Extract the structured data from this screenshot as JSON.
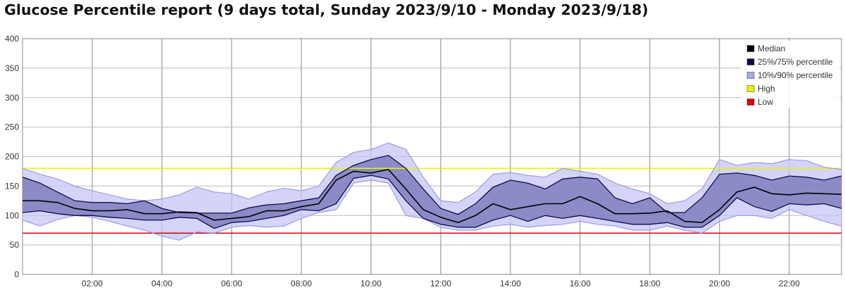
{
  "title": "Glucose Percentile report (9 days total, Sunday 2023/9/10 - Monday 2023/9/18)",
  "chart_data": {
    "type": "area",
    "title": "Glucose Percentile report (9 days total, Sunday 2023/9/10 - Monday 2023/9/18)",
    "xlabel": "",
    "ylabel": "",
    "x_unit": "hours",
    "xlim": [
      0,
      23.5
    ],
    "ylim": [
      0,
      400
    ],
    "y_ticks": [
      0,
      50,
      100,
      150,
      200,
      250,
      300,
      350,
      400
    ],
    "x_ticks": [
      {
        "value": 2,
        "label": "02:00"
      },
      {
        "value": 4,
        "label": "04:00"
      },
      {
        "value": 6,
        "label": "06:00"
      },
      {
        "value": 8,
        "label": "08:00"
      },
      {
        "value": 10,
        "label": "10:00"
      },
      {
        "value": 12,
        "label": "12:00"
      },
      {
        "value": 14,
        "label": "14:00"
      },
      {
        "value": 16,
        "label": "16:00"
      },
      {
        "value": 18,
        "label": "18:00"
      },
      {
        "value": 20,
        "label": "20:00"
      },
      {
        "value": 22,
        "label": "22:00"
      }
    ],
    "grid": true,
    "legend_position": "top-right",
    "x": [
      0,
      0.5,
      1,
      1.5,
      2,
      2.5,
      3,
      3.5,
      4,
      4.5,
      5,
      5.5,
      6,
      6.5,
      7,
      7.5,
      8,
      8.5,
      9,
      9.5,
      10,
      10.5,
      11,
      11.5,
      12,
      12.5,
      13,
      13.5,
      14,
      14.5,
      15,
      15.5,
      16,
      16.5,
      17,
      17.5,
      18,
      18.5,
      19,
      19.5,
      20,
      20.5,
      21,
      21.5,
      22,
      22.5,
      23,
      23.5
    ],
    "series": [
      {
        "name": "10%/90% percentile",
        "role": "p10",
        "color": "#a8a8f0",
        "values": [
          92,
          82,
          93,
          100,
          97,
          90,
          82,
          75,
          65,
          58,
          72,
          70,
          80,
          83,
          80,
          82,
          95,
          105,
          110,
          155,
          160,
          155,
          100,
          95,
          80,
          75,
          75,
          82,
          85,
          80,
          83,
          85,
          90,
          85,
          82,
          75,
          75,
          82,
          75,
          70,
          90,
          100,
          100,
          95,
          110,
          100,
          90,
          82
        ]
      },
      {
        "name": "25%/75% percentile",
        "role": "p25",
        "color": "#0b0b4a",
        "values": [
          105,
          108,
          103,
          100,
          100,
          97,
          95,
          92,
          92,
          97,
          95,
          78,
          88,
          90,
          95,
          100,
          110,
          108,
          120,
          163,
          168,
          162,
          125,
          95,
          85,
          80,
          80,
          92,
          100,
          90,
          100,
          95,
          100,
          95,
          90,
          85,
          85,
          88,
          80,
          80,
          100,
          130,
          115,
          107,
          120,
          118,
          120,
          112
        ]
      },
      {
        "name": "Median",
        "role": "p50",
        "color": "#000000",
        "values": [
          125,
          125,
          122,
          112,
          108,
          108,
          110,
          103,
          103,
          106,
          105,
          92,
          95,
          98,
          108,
          108,
          115,
          120,
          160,
          175,
          172,
          178,
          145,
          110,
          97,
          88,
          100,
          120,
          110,
          115,
          120,
          120,
          132,
          120,
          103,
          103,
          104,
          108,
          90,
          88,
          110,
          140,
          148,
          137,
          135,
          138,
          137,
          136
        ]
      },
      {
        "name": "25%/75% percentile",
        "role": "p75",
        "color": "#0b0b4a",
        "values": [
          165,
          155,
          140,
          125,
          122,
          122,
          120,
          125,
          112,
          105,
          104,
          104,
          104,
          113,
          118,
          120,
          125,
          130,
          168,
          185,
          195,
          202,
          180,
          145,
          112,
          102,
          120,
          148,
          160,
          155,
          145,
          162,
          165,
          162,
          130,
          120,
          130,
          105,
          105,
          130,
          170,
          172,
          168,
          160,
          167,
          165,
          160,
          167
        ]
      },
      {
        "name": "10%/90% percentile",
        "role": "p90",
        "color": "#a8a8f0",
        "values": [
          180,
          170,
          162,
          150,
          142,
          135,
          128,
          125,
          128,
          135,
          148,
          140,
          137,
          128,
          140,
          146,
          142,
          150,
          190,
          207,
          212,
          223,
          212,
          165,
          125,
          122,
          140,
          170,
          173,
          168,
          165,
          180,
          175,
          170,
          155,
          145,
          137,
          120,
          125,
          145,
          195,
          185,
          190,
          188,
          195,
          193,
          182,
          178
        ]
      }
    ],
    "reference_lines": [
      {
        "name": "High",
        "value": 180,
        "color": "#f0f000"
      },
      {
        "name": "Low",
        "value": 70,
        "color": "#cc0000"
      }
    ],
    "legend": [
      {
        "label": "Median",
        "color": "#000000"
      },
      {
        "label": "25%/75% percentile",
        "color": "#0b0b4a"
      },
      {
        "label": "10%/90% percentile",
        "color": "#a8a8f0"
      },
      {
        "label": "High",
        "color": "#f0f000"
      },
      {
        "label": "Low",
        "color": "#dd0000"
      }
    ]
  }
}
